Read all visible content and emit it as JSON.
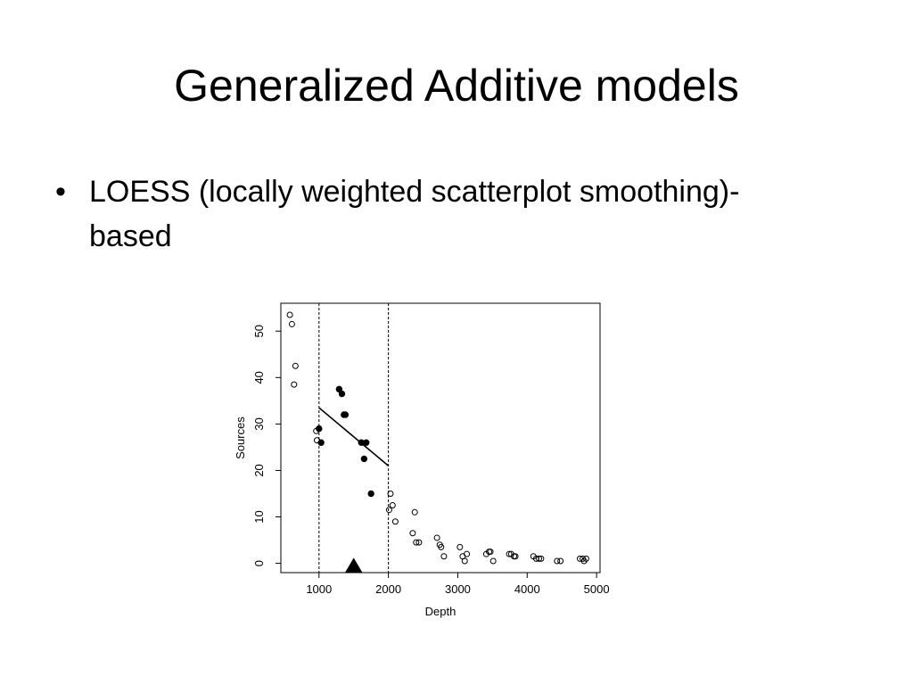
{
  "slide": {
    "title": "Generalized Additive models",
    "bullets": [
      {
        "symbol": "•",
        "text": "LOESS (locally weighted scatterplot smoothing)-based"
      }
    ]
  },
  "chart_data": {
    "type": "scatter",
    "xlabel": "Depth",
    "ylabel": "Sources",
    "xlim": [
      450,
      5050
    ],
    "ylim": [
      -2,
      56
    ],
    "xticks": [
      1000,
      2000,
      3000,
      4000,
      5000
    ],
    "yticks": [
      0,
      10,
      20,
      30,
      40,
      50
    ],
    "grid": false,
    "legend": "none",
    "series": [
      {
        "style": "open-circle",
        "color": "#000000",
        "points": [
          [
            580,
            53.5
          ],
          [
            610,
            51.5
          ],
          [
            660,
            42.5
          ],
          [
            640,
            38.5
          ],
          [
            960,
            28.5
          ],
          [
            970,
            26.5
          ],
          [
            2030,
            15
          ],
          [
            2060,
            12.5
          ],
          [
            2010,
            11.5
          ],
          [
            2100,
            9
          ],
          [
            2380,
            11
          ],
          [
            2350,
            6.5
          ],
          [
            2400,
            4.5
          ],
          [
            2440,
            4.5
          ],
          [
            2700,
            5.5
          ],
          [
            2740,
            4
          ],
          [
            2760,
            3.5
          ],
          [
            2800,
            1.5
          ],
          [
            3030,
            3.5
          ],
          [
            3070,
            1.5
          ],
          [
            3100,
            0.5
          ],
          [
            3130,
            2
          ],
          [
            3410,
            2
          ],
          [
            3450,
            2.5
          ],
          [
            3470,
            2.5
          ],
          [
            3510,
            0.5
          ],
          [
            3740,
            2
          ],
          [
            3770,
            2
          ],
          [
            3810,
            1.5
          ],
          [
            3830,
            1.5
          ],
          [
            4090,
            1.5
          ],
          [
            4130,
            1
          ],
          [
            4170,
            1
          ],
          [
            4200,
            1
          ],
          [
            4430,
            0.5
          ],
          [
            4480,
            0.5
          ],
          [
            4760,
            1
          ],
          [
            4800,
            1
          ],
          [
            4820,
            0.5
          ],
          [
            4850,
            1
          ]
        ]
      },
      {
        "style": "filled-circle",
        "color": "#000000",
        "points": [
          [
            1000,
            29
          ],
          [
            1030,
            26
          ],
          [
            1290,
            37.5
          ],
          [
            1330,
            36.5
          ],
          [
            1360,
            32
          ],
          [
            1380,
            32
          ],
          [
            1610,
            26
          ],
          [
            1680,
            26
          ],
          [
            1650,
            22.5
          ],
          [
            1750,
            15
          ]
        ]
      }
    ],
    "fit_line": {
      "x": [
        1000,
        2000
      ],
      "y": [
        33.5,
        21
      ]
    },
    "vlines": [
      1000,
      2000
    ],
    "marker": {
      "shape": "triangle",
      "x": 1500,
      "y": -1.5,
      "color": "#000000"
    }
  }
}
